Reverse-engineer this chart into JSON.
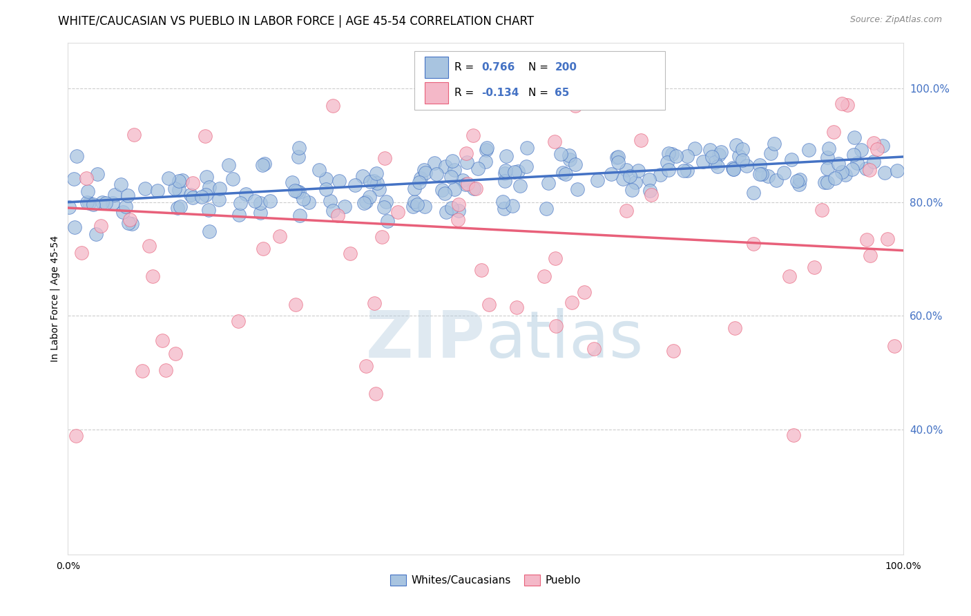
{
  "title": "WHITE/CAUCASIAN VS PUEBLO IN LABOR FORCE | AGE 45-54 CORRELATION CHART",
  "source": "Source: ZipAtlas.com",
  "ylabel": "In Labor Force | Age 45-54",
  "ytick_labels": [
    "40.0%",
    "60.0%",
    "80.0%",
    "100.0%"
  ],
  "ytick_values": [
    0.4,
    0.6,
    0.8,
    1.0
  ],
  "xlim": [
    0.0,
    1.0
  ],
  "ylim": [
    0.18,
    1.08
  ],
  "blue_R": 0.766,
  "blue_N": 200,
  "pink_R": -0.134,
  "pink_N": 65,
  "blue_scatter_color": "#a8c4e0",
  "blue_line_color": "#4472c4",
  "pink_scatter_color": "#f4b8c8",
  "pink_line_color": "#e8607a",
  "blue_line_start_x": 0.0,
  "blue_line_start_y": 0.8,
  "blue_line_end_x": 1.0,
  "blue_line_end_y": 0.88,
  "pink_line_start_x": 0.0,
  "pink_line_start_y": 0.79,
  "pink_line_end_x": 1.0,
  "pink_line_end_y": 0.715,
  "watermark_zip": "ZIP",
  "watermark_atlas": "atlas",
  "legend_label_blue": "Whites/Caucasians",
  "legend_label_pink": "Pueblo",
  "background_color": "#ffffff",
  "grid_color": "#cccccc",
  "title_fontsize": 12,
  "source_fontsize": 9,
  "axis_label_fontsize": 10,
  "tick_fontsize": 10,
  "legend_fontsize": 11
}
